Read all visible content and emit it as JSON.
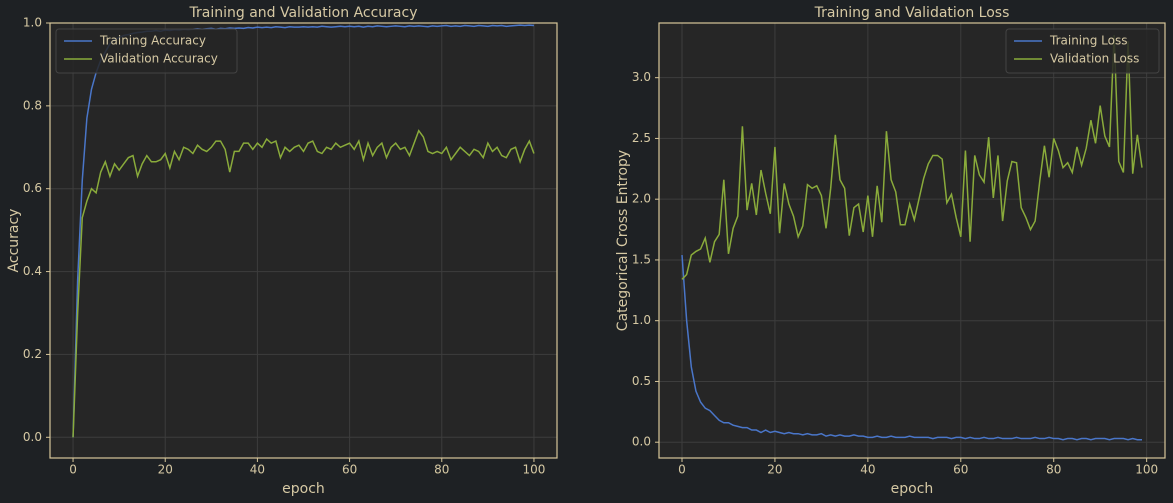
{
  "chart_data": [
    {
      "type": "line",
      "title": "Training and Validation Accuracy",
      "xlabel": "epoch",
      "ylabel": "Accuracy",
      "x": [
        0,
        1,
        2,
        3,
        4,
        5,
        6,
        7,
        8,
        9,
        10,
        11,
        12,
        13,
        14,
        15,
        16,
        17,
        18,
        19,
        20,
        21,
        22,
        23,
        24,
        25,
        26,
        27,
        28,
        29,
        30,
        31,
        32,
        33,
        34,
        35,
        36,
        37,
        38,
        39,
        40,
        41,
        42,
        43,
        44,
        45,
        46,
        47,
        48,
        49,
        50,
        51,
        52,
        53,
        54,
        55,
        56,
        57,
        58,
        59,
        60,
        61,
        62,
        63,
        64,
        65,
        66,
        67,
        68,
        69,
        70,
        71,
        72,
        73,
        74,
        75,
        76,
        77,
        78,
        79,
        80,
        81,
        82,
        83,
        84,
        85,
        86,
        87,
        88,
        89,
        90,
        91,
        92,
        93,
        94,
        95,
        96,
        97,
        98,
        99,
        100
      ],
      "series": [
        {
          "name": "Training Accuracy",
          "color": "#4a76c9",
          "values": [
            0.0,
            0.38,
            0.62,
            0.77,
            0.84,
            0.88,
            0.91,
            0.93,
            0.95,
            0.96,
            0.965,
            0.97,
            0.972,
            0.975,
            0.977,
            0.978,
            0.98,
            0.98,
            0.982,
            0.98,
            0.983,
            0.982,
            0.984,
            0.983,
            0.985,
            0.984,
            0.985,
            0.986,
            0.985,
            0.986,
            0.987,
            0.985,
            0.987,
            0.986,
            0.988,
            0.987,
            0.988,
            0.987,
            0.989,
            0.988,
            0.99,
            0.989,
            0.99,
            0.989,
            0.991,
            0.99,
            0.989,
            0.991,
            0.99,
            0.99,
            0.991,
            0.99,
            0.991,
            0.99,
            0.992,
            0.991,
            0.99,
            0.991,
            0.992,
            0.991,
            0.992,
            0.991,
            0.992,
            0.99,
            0.992,
            0.991,
            0.993,
            0.992,
            0.991,
            0.992,
            0.993,
            0.992,
            0.991,
            0.993,
            0.992,
            0.993,
            0.992,
            0.991,
            0.993,
            0.992,
            0.993,
            0.994,
            0.992,
            0.993,
            0.992,
            0.994,
            0.993,
            0.992,
            0.994,
            0.993,
            0.992,
            0.994,
            0.993,
            0.994,
            0.992,
            0.993,
            0.994,
            0.995,
            0.994,
            0.995,
            0.994
          ]
        },
        {
          "name": "Validation Accuracy",
          "color": "#8aab3b",
          "values": [
            0.0,
            0.3,
            0.53,
            0.57,
            0.6,
            0.59,
            0.64,
            0.665,
            0.63,
            0.66,
            0.645,
            0.66,
            0.675,
            0.68,
            0.63,
            0.66,
            0.68,
            0.665,
            0.665,
            0.67,
            0.685,
            0.65,
            0.69,
            0.67,
            0.7,
            0.695,
            0.685,
            0.705,
            0.695,
            0.69,
            0.7,
            0.715,
            0.715,
            0.695,
            0.64,
            0.69,
            0.69,
            0.71,
            0.71,
            0.695,
            0.71,
            0.7,
            0.72,
            0.71,
            0.715,
            0.675,
            0.7,
            0.69,
            0.7,
            0.705,
            0.69,
            0.71,
            0.715,
            0.69,
            0.685,
            0.7,
            0.695,
            0.71,
            0.7,
            0.705,
            0.71,
            0.695,
            0.715,
            0.67,
            0.71,
            0.68,
            0.7,
            0.71,
            0.675,
            0.7,
            0.71,
            0.695,
            0.7,
            0.68,
            0.71,
            0.74,
            0.725,
            0.69,
            0.685,
            0.69,
            0.685,
            0.7,
            0.67,
            0.685,
            0.7,
            0.69,
            0.68,
            0.695,
            0.69,
            0.675,
            0.71,
            0.69,
            0.7,
            0.68,
            0.675,
            0.695,
            0.7,
            0.665,
            0.695,
            0.715,
            0.685
          ]
        }
      ],
      "xlim": [
        -5,
        105
      ],
      "ylim": [
        -0.05,
        1.0
      ],
      "xticks": [
        0,
        20,
        40,
        60,
        80,
        100
      ],
      "yticks": [
        {
          "value": 0,
          "label": "0.0"
        },
        0.2,
        0.4,
        0.6,
        0.8,
        {
          "value": 1,
          "label": "1.0"
        }
      ],
      "grid": true,
      "legend": "upper left"
    },
    {
      "type": "line",
      "title": "Training and Validation Loss",
      "xlabel": "epoch",
      "ylabel": "Categorical Cross Entropy",
      "x": [
        0,
        1,
        2,
        3,
        4,
        5,
        6,
        7,
        8,
        9,
        10,
        11,
        12,
        13,
        14,
        15,
        16,
        17,
        18,
        19,
        20,
        21,
        22,
        23,
        24,
        25,
        26,
        27,
        28,
        29,
        30,
        31,
        32,
        33,
        34,
        35,
        36,
        37,
        38,
        39,
        40,
        41,
        42,
        43,
        44,
        45,
        46,
        47,
        48,
        49,
        50,
        51,
        52,
        53,
        54,
        55,
        56,
        57,
        58,
        59,
        60,
        61,
        62,
        63,
        64,
        65,
        66,
        67,
        68,
        69,
        70,
        71,
        72,
        73,
        74,
        75,
        76,
        77,
        78,
        79,
        80,
        81,
        82,
        83,
        84,
        85,
        86,
        87,
        88,
        89,
        90,
        91,
        92,
        93,
        94,
        95,
        96,
        97,
        98,
        99
      ],
      "series": [
        {
          "name": "Training Loss",
          "color": "#4a76c9",
          "values": [
            1.54,
            1.0,
            0.62,
            0.42,
            0.33,
            0.28,
            0.26,
            0.22,
            0.18,
            0.16,
            0.16,
            0.14,
            0.13,
            0.12,
            0.12,
            0.1,
            0.1,
            0.08,
            0.1,
            0.08,
            0.09,
            0.08,
            0.07,
            0.08,
            0.07,
            0.07,
            0.06,
            0.07,
            0.06,
            0.06,
            0.07,
            0.05,
            0.06,
            0.05,
            0.06,
            0.05,
            0.05,
            0.06,
            0.05,
            0.05,
            0.04,
            0.04,
            0.05,
            0.04,
            0.04,
            0.05,
            0.04,
            0.04,
            0.04,
            0.05,
            0.04,
            0.04,
            0.04,
            0.04,
            0.03,
            0.04,
            0.04,
            0.04,
            0.03,
            0.04,
            0.04,
            0.03,
            0.04,
            0.03,
            0.03,
            0.04,
            0.03,
            0.03,
            0.04,
            0.03,
            0.03,
            0.03,
            0.04,
            0.03,
            0.03,
            0.03,
            0.04,
            0.03,
            0.03,
            0.04,
            0.03,
            0.03,
            0.02,
            0.03,
            0.03,
            0.02,
            0.03,
            0.03,
            0.02,
            0.03,
            0.03,
            0.03,
            0.02,
            0.03,
            0.03,
            0.03,
            0.02,
            0.03,
            0.02,
            0.02
          ]
        },
        {
          "name": "Validation Loss",
          "color": "#8aab3b",
          "values": [
            1.34,
            1.38,
            1.54,
            1.57,
            1.59,
            1.68,
            1.48,
            1.65,
            1.71,
            2.16,
            1.55,
            1.76,
            1.86,
            2.6,
            1.91,
            2.13,
            1.87,
            2.24,
            2.05,
            1.88,
            2.43,
            1.72,
            2.13,
            1.96,
            1.86,
            1.69,
            1.78,
            2.12,
            2.09,
            2.11,
            2.03,
            1.76,
            2.09,
            2.53,
            2.16,
            2.09,
            1.7,
            1.93,
            1.96,
            1.73,
            2.03,
            1.69,
            2.11,
            1.81,
            2.56,
            2.16,
            2.06,
            1.79,
            1.79,
            1.96,
            1.83,
            2.0,
            2.17,
            2.29,
            2.36,
            2.36,
            2.33,
            1.97,
            2.04,
            1.85,
            1.69,
            2.4,
            1.65,
            2.36,
            2.2,
            2.14,
            2.51,
            2.01,
            2.36,
            1.82,
            2.15,
            2.31,
            2.3,
            1.93,
            1.85,
            1.75,
            1.82,
            2.15,
            2.44,
            2.18,
            2.5,
            2.4,
            2.26,
            2.3,
            2.22,
            2.43,
            2.28,
            2.42,
            2.65,
            2.46,
            2.77,
            2.52,
            2.43,
            3.35,
            2.31,
            2.22,
            3.3,
            2.21,
            2.53,
            2.26
          ]
        }
      ],
      "xlim": [
        -4.95,
        103.95
      ],
      "ylim": [
        -0.13,
        3.45
      ],
      "xticks": [
        0,
        20,
        40,
        60,
        80,
        100
      ],
      "yticks": [
        {
          "value": 0,
          "label": "0.0"
        },
        0.5,
        {
          "value": 1,
          "label": "1.0"
        },
        1.5,
        {
          "value": 2,
          "label": "2.0"
        },
        2.5,
        {
          "value": 3,
          "label": "3.0"
        }
      ],
      "grid": true,
      "legend": "upper right"
    }
  ]
}
